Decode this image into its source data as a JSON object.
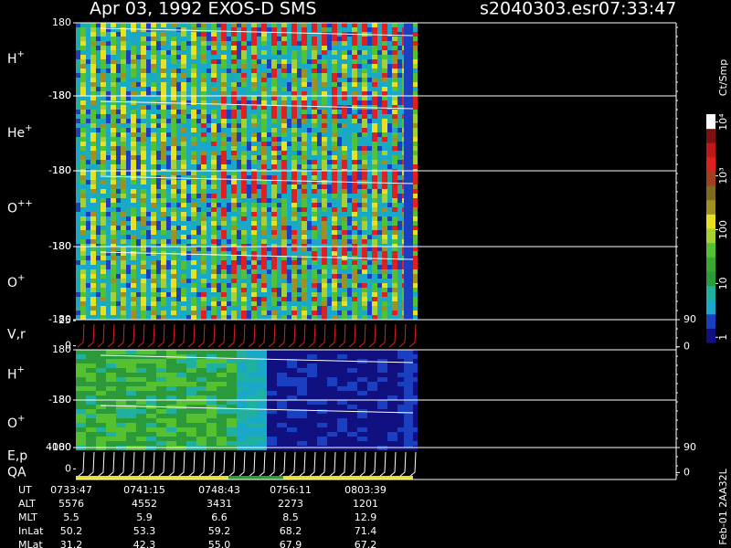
{
  "chart_data": {
    "type": "spectrogram",
    "title": "Apr 03, 1992   EXOS-D SMS",
    "file": "s2040303.esr",
    "time": "07:33:47",
    "panels": [
      {
        "label": "H",
        "sup": "+",
        "ylim": [
          -180,
          180
        ],
        "yticks": [
          180,
          -180
        ]
      },
      {
        "label": "He",
        "sup": "+",
        "ylim": [
          -180,
          180
        ],
        "yticks": [
          180,
          -180
        ]
      },
      {
        "label": "O",
        "sup": "++",
        "ylim": [
          -180,
          180
        ],
        "yticks": [
          180,
          -180
        ]
      },
      {
        "label": "O",
        "sup": "+",
        "ylim": [
          -180,
          180
        ],
        "yticks": [
          180,
          -180
        ]
      },
      {
        "label": "V,r",
        "ylim": [
          -4,
          26
        ],
        "yticks": [
          25,
          0
        ],
        "y2lim": [
          -10,
          90
        ],
        "y2ticks": [
          90,
          0
        ]
      },
      {
        "label": "H",
        "sup": "+",
        "ylim": [
          -180,
          180
        ],
        "yticks": [
          180,
          -180
        ]
      },
      {
        "label": "O",
        "sup": "+",
        "ylim": [
          -180,
          180
        ],
        "yticks": [
          180,
          -180
        ]
      },
      {
        "label": "E,p",
        "label2": "QA",
        "ylim": [
          -2000,
          4000
        ],
        "yticks": [
          4000,
          0
        ],
        "y2lim": [
          -25,
          90
        ],
        "y2ticks": [
          90,
          0
        ]
      }
    ],
    "colorbar": {
      "label": "Ct/Smp",
      "log": true,
      "clim": [
        0.8,
        14000
      ],
      "ticks": [
        {
          "value": 10000,
          "label": "10⁴"
        },
        {
          "value": 1000,
          "label": "10³"
        },
        100,
        10,
        1
      ]
    },
    "ephemeris": [
      [
        "UT",
        "0733:47",
        "0741:15",
        "0748:43",
        "0756:11",
        "0803:39"
      ],
      [
        "ALT",
        "5576",
        "4552",
        "3431",
        "2273",
        "1201"
      ],
      [
        "MLT",
        "5.5",
        "5.9",
        "6.6",
        "8.5",
        "12.9"
      ],
      [
        "InLat",
        "50.2",
        "53.3",
        "59.2",
        "68.2",
        "71.4"
      ],
      [
        "MLat",
        "31.2",
        "42.3",
        "55.0",
        "67.9",
        "67.2"
      ]
    ],
    "footer": "Feb-01 2AA32L"
  }
}
